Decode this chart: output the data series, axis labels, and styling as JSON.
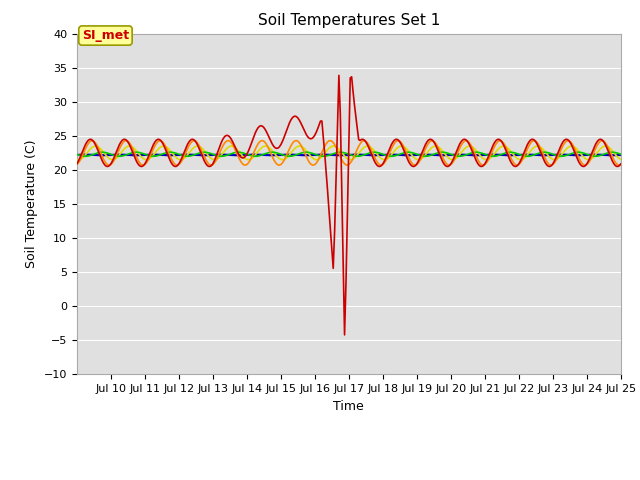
{
  "title": "Soil Temperatures Set 1",
  "xlabel": "Time",
  "ylabel": "Soil Temperature (C)",
  "ylim": [
    -10,
    40
  ],
  "yticks": [
    -10,
    -5,
    0,
    5,
    10,
    15,
    20,
    25,
    30,
    35,
    40
  ],
  "xlim": [
    9,
    25
  ],
  "series_colors": {
    "TC1_2Cm": "#cc0000",
    "TC1_4Cm": "#ff8800",
    "TC1_8Cm": "#dddd00",
    "TC1_16Cm": "#00cc00",
    "TC1_32Cm": "#0000cc",
    "TC1_50Cm": "#cc66cc"
  },
  "annotation_text": "SI_met",
  "annotation_color": "#cc0000",
  "annotation_bg": "#ffff99",
  "annotation_edge": "#999900",
  "background_color": "#e0e0e0",
  "grid_color": "#ffffff",
  "fig_facecolor": "#ffffff",
  "title_fontsize": 11,
  "label_fontsize": 9,
  "tick_fontsize": 8,
  "legend_fontsize": 8,
  "linewidth": 1.2
}
